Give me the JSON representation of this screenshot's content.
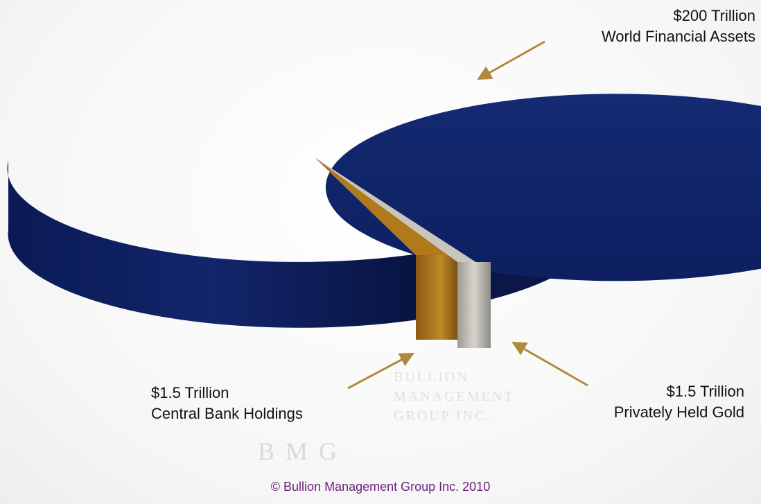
{
  "chart_data": {
    "type": "pie",
    "title": "",
    "slices": [
      {
        "value_text": "$200 Trillion",
        "label": "World Financial Assets",
        "value": 200,
        "color": "#0e1f5e"
      },
      {
        "value_text": "$1.5 Trillion",
        "label": "Central Bank Holdings",
        "value": 1.5,
        "color": "#b07a1c"
      },
      {
        "value_text": "$1.5 Trillion",
        "label": "Privately Held Gold",
        "value": 1.5,
        "color": "#c8c6bc"
      }
    ],
    "units": "Trillion",
    "arrow_color": "#b08a3c"
  },
  "watermark": {
    "lines": [
      "BULLION",
      "MANAGEMENT",
      "GROUP INC."
    ],
    "mark": "BMG"
  },
  "copyright": "© Bullion Management Group Inc. 2010"
}
